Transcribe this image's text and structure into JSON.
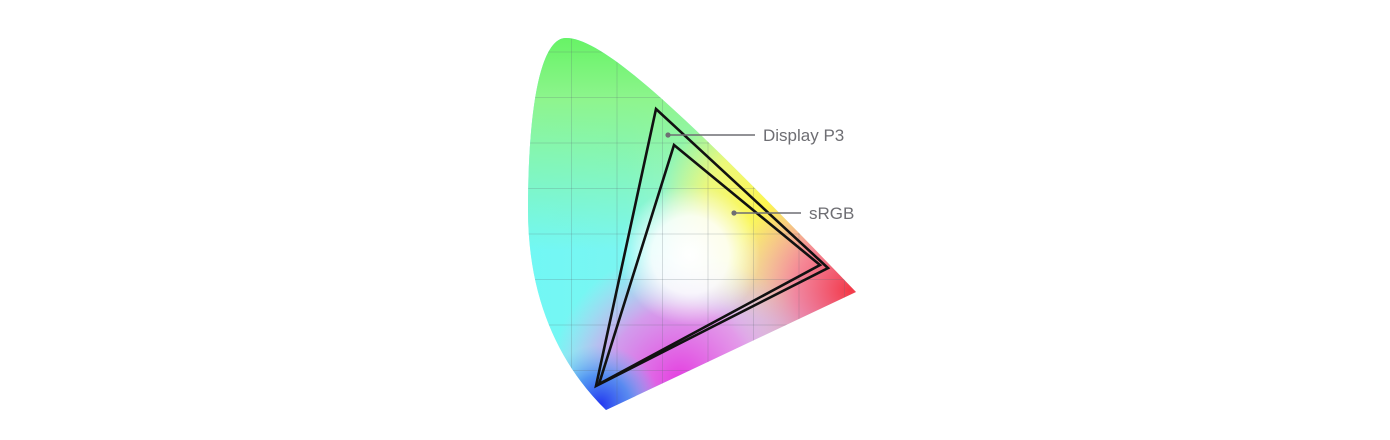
{
  "diagram": {
    "gamuts": [
      {
        "label": "Display P3"
      },
      {
        "label": "sRGB"
      }
    ],
    "colors": {
      "outline": "#111111",
      "leader_line": "#6e6e73",
      "label_text": "#6e6e73",
      "grid": "#5a6a70",
      "spectral_green": "#5cf25a",
      "spectral_cyan": "#6ff8f5",
      "spectral_yellow": "#fff64a",
      "spectral_red": "#f43846",
      "spectral_magenta": "#e53de0",
      "spectral_blue": "#2234f0",
      "white_point": "#ffffff"
    }
  }
}
